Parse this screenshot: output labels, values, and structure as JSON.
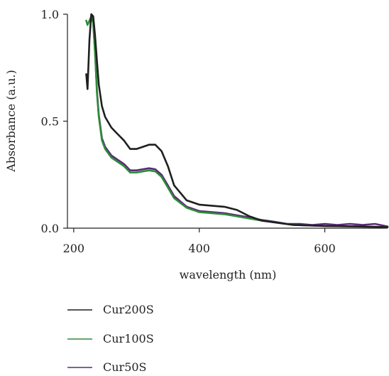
{
  "chart_data": {
    "type": "line",
    "title": "",
    "xlabel": "wavelength (nm)",
    "ylabel": "Absorbance (a.u.)",
    "xlim": [
      190,
      700
    ],
    "ylim": [
      0,
      1.0
    ],
    "x_ticks": [
      200,
      400,
      600
    ],
    "y_ticks": [
      0.0,
      0.5,
      1.0
    ],
    "x_tick_labels": [
      "200",
      "400",
      "600"
    ],
    "y_tick_labels": [
      "0.0",
      "0.5",
      "1.0"
    ],
    "grid": false,
    "legend_position": "below",
    "series": [
      {
        "name": "Cur200S",
        "color": "#1f1f1f",
        "x": [
          220,
          222,
          225,
          228,
          231,
          234,
          237,
          240,
          245,
          250,
          260,
          270,
          280,
          290,
          300,
          310,
          320,
          330,
          340,
          350,
          360,
          380,
          400,
          420,
          440,
          460,
          480,
          500,
          550,
          600,
          650,
          700
        ],
        "y": [
          0.72,
          0.65,
          0.88,
          1.0,
          0.99,
          0.9,
          0.78,
          0.67,
          0.57,
          0.52,
          0.47,
          0.44,
          0.41,
          0.37,
          0.37,
          0.38,
          0.39,
          0.39,
          0.36,
          0.29,
          0.2,
          0.13,
          0.11,
          0.105,
          0.1,
          0.085,
          0.055,
          0.035,
          0.015,
          0.01,
          0.008,
          0.005
        ]
      },
      {
        "name": "Cur100S",
        "color": "#2e8b3a",
        "x": [
          220,
          222,
          225,
          228,
          231,
          234,
          237,
          240,
          245,
          250,
          260,
          270,
          280,
          290,
          300,
          310,
          320,
          330,
          340,
          350,
          360,
          380,
          400,
          420,
          440,
          460,
          480,
          500,
          550,
          600,
          650,
          700
        ],
        "y": [
          0.97,
          0.95,
          0.97,
          0.99,
          0.96,
          0.82,
          0.63,
          0.52,
          0.41,
          0.37,
          0.33,
          0.31,
          0.29,
          0.26,
          0.26,
          0.265,
          0.27,
          0.265,
          0.24,
          0.19,
          0.14,
          0.095,
          0.075,
          0.07,
          0.065,
          0.055,
          0.045,
          0.035,
          0.015,
          0.01,
          0.008,
          0.005
        ]
      },
      {
        "name": "Cur50S",
        "color": "#5b2a77",
        "x": [
          228,
          231,
          234,
          237,
          240,
          245,
          250,
          260,
          270,
          280,
          290,
          300,
          310,
          320,
          330,
          340,
          350,
          360,
          380,
          400,
          420,
          440,
          460,
          480,
          500,
          520,
          540,
          560,
          580,
          600,
          620,
          640,
          660,
          680,
          700
        ],
        "y": [
          0.99,
          0.96,
          0.82,
          0.64,
          0.53,
          0.42,
          0.38,
          0.34,
          0.32,
          0.3,
          0.27,
          0.27,
          0.275,
          0.28,
          0.275,
          0.25,
          0.2,
          0.15,
          0.1,
          0.08,
          0.075,
          0.07,
          0.06,
          0.05,
          0.038,
          0.03,
          0.02,
          0.02,
          0.015,
          0.02,
          0.015,
          0.02,
          0.015,
          0.02,
          0.008
        ]
      }
    ]
  }
}
